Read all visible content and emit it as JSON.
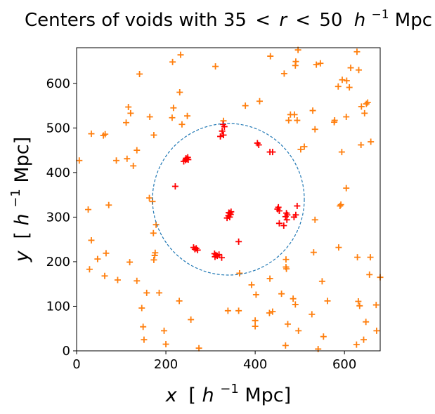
{
  "chart_data": {
    "type": "scatter",
    "title_prefix": "Centers of voids with 35",
    "title_lt": "<",
    "title_r": "r",
    "title_number": "50",
    "title_h": "h",
    "title_exp": "−1",
    "title_unit": "Mpc",
    "xlabel_var": "x",
    "ylabel_var": "y",
    "label_open": "[",
    "label_h": "h",
    "label_exp": "−1",
    "label_unit": "Mpc]",
    "xlim": [
      0,
      680
    ],
    "ylim": [
      0,
      680
    ],
    "xticks": [
      0,
      200,
      400,
      600
    ],
    "yticks": [
      0,
      100,
      200,
      300,
      400,
      500,
      600
    ],
    "marker": "+",
    "grid": false,
    "colors": {
      "outside": "#ff7f0e",
      "inside": "#ff0000",
      "circle": "#1f77b4"
    },
    "circle": {
      "cx": 340,
      "cy": 340,
      "r": 170,
      "style": "dashed"
    },
    "series": [
      {
        "key": "outside",
        "points": [
          [
            6,
            427
          ],
          [
            26,
            317
          ],
          [
            29,
            183
          ],
          [
            33,
            487
          ],
          [
            33,
            248
          ],
          [
            47,
            206
          ],
          [
            60,
            483
          ],
          [
            63,
            168
          ],
          [
            64,
            486
          ],
          [
            66,
            219
          ],
          [
            72,
            327
          ],
          [
            89,
            427
          ],
          [
            92,
            159
          ],
          [
            111,
            512
          ],
          [
            113,
            431
          ],
          [
            116,
            547
          ],
          [
            119,
            199
          ],
          [
            121,
            533
          ],
          [
            127,
            415
          ],
          [
            135,
            450
          ],
          [
            135,
            157
          ],
          [
            141,
            621
          ],
          [
            146,
            96
          ],
          [
            149,
            54
          ],
          [
            151,
            25
          ],
          [
            157,
            130
          ],
          [
            163,
            343
          ],
          [
            164,
            525
          ],
          [
            170,
            335
          ],
          [
            172,
            264
          ],
          [
            173,
            204
          ],
          [
            173,
            484
          ],
          [
            175,
            214
          ],
          [
            176,
            220
          ],
          [
            178,
            283
          ],
          [
            185,
            130
          ],
          [
            196,
            45
          ],
          [
            200,
            15
          ],
          [
            214,
            523
          ],
          [
            215,
            648
          ],
          [
            217,
            545
          ],
          [
            230,
            112
          ],
          [
            231,
            580
          ],
          [
            233,
            664
          ],
          [
            236,
            508
          ],
          [
            248,
            527
          ],
          [
            256,
            70
          ],
          [
            274,
            6
          ],
          [
            311,
            638
          ],
          [
            329,
            516
          ],
          [
            339,
            90
          ],
          [
            363,
            90
          ],
          [
            365,
            174
          ],
          [
            378,
            550
          ],
          [
            392,
            148
          ],
          [
            400,
            55
          ],
          [
            400,
            68
          ],
          [
            402,
            126
          ],
          [
            410,
            560
          ],
          [
            432,
            85
          ],
          [
            433,
            162
          ],
          [
            434,
            661
          ],
          [
            439,
            88
          ],
          [
            459,
            128
          ],
          [
            465,
            622
          ],
          [
            468,
            12
          ],
          [
            469,
            188
          ],
          [
            469,
            205
          ],
          [
            470,
            184
          ],
          [
            473,
            60
          ],
          [
            475,
            517
          ],
          [
            479,
            530
          ],
          [
            485,
            117
          ],
          [
            488,
            530
          ],
          [
            490,
            640
          ],
          [
            490,
            104
          ],
          [
            491,
            649
          ],
          [
            494,
            517
          ],
          [
            496,
            675
          ],
          [
            497,
            45
          ],
          [
            502,
            452
          ],
          [
            510,
            458
          ],
          [
            527,
            82
          ],
          [
            529,
            539
          ],
          [
            531,
            221
          ],
          [
            534,
            497
          ],
          [
            534,
            294
          ],
          [
            537,
            642
          ],
          [
            541,
            4
          ],
          [
            546,
            645
          ],
          [
            550,
            156
          ],
          [
            553,
            32
          ],
          [
            562,
            112
          ],
          [
            577,
            513
          ],
          [
            578,
            517
          ],
          [
            586,
            593
          ],
          [
            587,
            232
          ],
          [
            590,
            325
          ],
          [
            592,
            328
          ],
          [
            594,
            446
          ],
          [
            595,
            608
          ],
          [
            604,
            365
          ],
          [
            604,
            525
          ],
          [
            605,
            606
          ],
          [
            611,
            591
          ],
          [
            614,
            635
          ],
          [
            627,
            14
          ],
          [
            628,
            671
          ],
          [
            629,
            210
          ],
          [
            631,
            111
          ],
          [
            632,
            630
          ],
          [
            634,
            101
          ],
          [
            637,
            462
          ],
          [
            638,
            548
          ],
          [
            643,
            25
          ],
          [
            645,
            533
          ],
          [
            648,
            65
          ],
          [
            649,
            554
          ],
          [
            652,
            557
          ],
          [
            656,
            171
          ],
          [
            658,
            210
          ],
          [
            659,
            469
          ],
          [
            671,
            103
          ],
          [
            672,
            45
          ],
          [
            680,
            165
          ]
        ]
      },
      {
        "key": "inside",
        "points": [
          [
            221,
            369
          ],
          [
            240,
            425
          ],
          [
            244,
            428
          ],
          [
            245,
            432
          ],
          [
            247,
            430
          ],
          [
            249,
            434
          ],
          [
            250,
            429
          ],
          [
            262,
            232
          ],
          [
            265,
            228
          ],
          [
            268,
            230
          ],
          [
            271,
            226
          ],
          [
            309,
            218
          ],
          [
            310,
            211
          ],
          [
            312,
            215
          ],
          [
            315,
            213
          ],
          [
            319,
            216
          ],
          [
            325,
            209
          ],
          [
            322,
            481
          ],
          [
            326,
            493
          ],
          [
            328,
            508
          ],
          [
            331,
            503
          ],
          [
            329,
            484
          ],
          [
            337,
            298
          ],
          [
            340,
            303
          ],
          [
            341,
            310
          ],
          [
            343,
            309
          ],
          [
            345,
            306
          ],
          [
            346,
            312
          ],
          [
            343,
            300
          ],
          [
            363,
            245
          ],
          [
            405,
            466
          ],
          [
            408,
            462
          ],
          [
            433,
            446
          ],
          [
            439,
            446
          ],
          [
            450,
            318
          ],
          [
            452,
            322
          ],
          [
            454,
            314
          ],
          [
            454,
            286
          ],
          [
            464,
            281
          ],
          [
            468,
            301
          ],
          [
            470,
            309
          ],
          [
            472,
            305
          ],
          [
            471,
            294
          ],
          [
            487,
            300
          ],
          [
            491,
            305
          ],
          [
            494,
            325
          ]
        ]
      }
    ]
  }
}
